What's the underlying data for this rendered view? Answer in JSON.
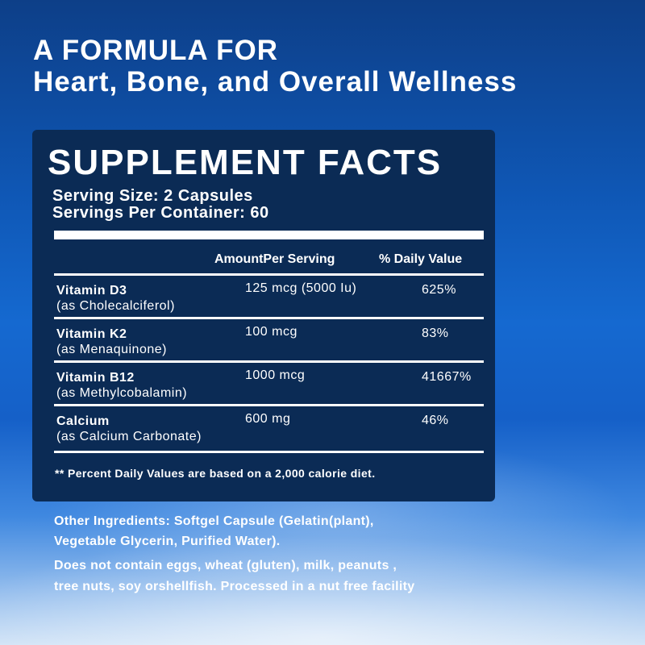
{
  "headline": {
    "line1": "A FORMULA FOR",
    "line2": "Heart, Bone, and Overall Wellness"
  },
  "facts": {
    "title": "SUPPLEMENT FACTS",
    "serving_size": "Serving Size: 2 Capsules",
    "servings_per_container": "Servings Per Container: 60",
    "col_amount": "AmountPer Serving",
    "col_dv": "% Daily  Value",
    "rows": [
      {
        "name": "Vitamin D3",
        "form": "(as Cholecalciferol)",
        "amount": "125 mcg (5000 Iu)",
        "dv": "625%"
      },
      {
        "name": "Vitamin K2",
        "form": "(as Menaquinone)",
        "amount": "100 mcg",
        "dv": "83%"
      },
      {
        "name": "Vitamin B12",
        "form": "(as Methylcobalamin)",
        "amount": "1000 mcg",
        "dv": "41667%"
      },
      {
        "name": "Calcium",
        "form": "(as Calcium Carbonate)",
        "amount": "600 mg",
        "dv": "46%"
      }
    ],
    "footnote": "** Percent Daily Values are based on a 2,000 calorie diet."
  },
  "other": {
    "ingredients_line1": "Other Ingredients: Softgel Capsule (Gelatin(plant),",
    "ingredients_line2": "Vegetable Glycerin, Purified Water).",
    "allergens_line1": "Does not contain eggs, wheat (gluten), milk, peanuts ,",
    "allergens_line2": "tree nuts, soy orshellfish. Processed in a nut free facility"
  },
  "colors": {
    "panel": "#0b2b55",
    "background_top": "#0d3f88",
    "background_mid": "#1569d0",
    "text": "#ffffff"
  }
}
